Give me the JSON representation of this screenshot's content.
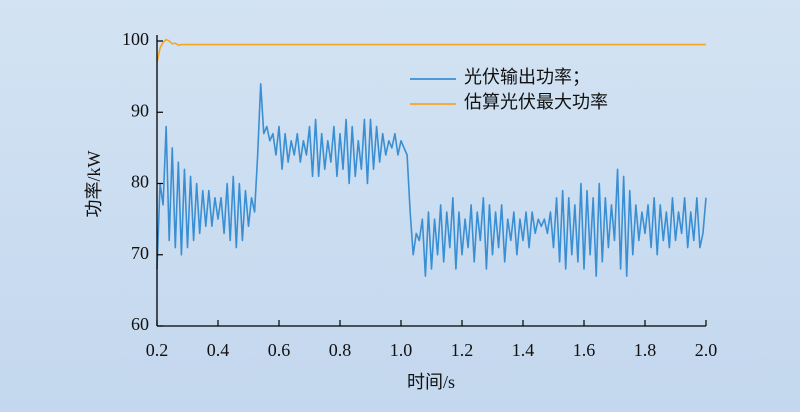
{
  "chart_data": {
    "type": "line",
    "xlabel": "时间/s",
    "ylabel": "功率/kW",
    "xlim": [
      0.2,
      2.0
    ],
    "ylim": [
      60,
      100
    ],
    "xticks": [
      0.2,
      0.4,
      0.6,
      0.8,
      {
        "value": 1,
        "label": "1.0"
      },
      1.2,
      1.4,
      1.6,
      1.8,
      {
        "value": 2,
        "label": "2.0"
      }
    ],
    "yticks": [
      60,
      70,
      80,
      90,
      100
    ],
    "legend": "upper center",
    "x": [
      0.2,
      0.21,
      0.22,
      0.23,
      0.24,
      0.25,
      0.26,
      0.27,
      0.28,
      0.29,
      0.3,
      0.31,
      0.32,
      0.33,
      0.34,
      0.35,
      0.36,
      0.37,
      0.38,
      0.39,
      0.4,
      0.41,
      0.42,
      0.43,
      0.44,
      0.45,
      0.46,
      0.47,
      0.48,
      0.49,
      0.5,
      0.51,
      0.52,
      0.53,
      0.54,
      0.55,
      0.56,
      0.57,
      0.58,
      0.59,
      0.6,
      0.61,
      0.62,
      0.63,
      0.64,
      0.65,
      0.66,
      0.67,
      0.68,
      0.69,
      0.7,
      0.71,
      0.72,
      0.73,
      0.74,
      0.75,
      0.76,
      0.77,
      0.78,
      0.79,
      0.8,
      0.81,
      0.82,
      0.83,
      0.84,
      0.85,
      0.86,
      0.87,
      0.88,
      0.89,
      0.9,
      0.91,
      0.92,
      0.93,
      0.94,
      0.95,
      0.96,
      0.97,
      0.98,
      0.99,
      1,
      1.01,
      1.02,
      1.03,
      1.04,
      1.05,
      1.06,
      1.07,
      1.08,
      1.09,
      1.1,
      1.11,
      1.12,
      1.13,
      1.14,
      1.15,
      1.16,
      1.17,
      1.18,
      1.19,
      1.2,
      1.21,
      1.22,
      1.23,
      1.24,
      1.25,
      1.26,
      1.27,
      1.28,
      1.29,
      1.3,
      1.31,
      1.32,
      1.33,
      1.34,
      1.35,
      1.36,
      1.37,
      1.38,
      1.39,
      1.4,
      1.41,
      1.42,
      1.43,
      1.44,
      1.45,
      1.46,
      1.47,
      1.48,
      1.49,
      1.5,
      1.51,
      1.52,
      1.53,
      1.54,
      1.55,
      1.56,
      1.57,
      1.58,
      1.59,
      1.6,
      1.61,
      1.62,
      1.63,
      1.64,
      1.65,
      1.66,
      1.67,
      1.68,
      1.69,
      1.7,
      1.71,
      1.72,
      1.73,
      1.74,
      1.75,
      1.76,
      1.77,
      1.78,
      1.79,
      1.8,
      1.81,
      1.82,
      1.83,
      1.84,
      1.85,
      1.86,
      1.87,
      1.88,
      1.89,
      1.9,
      1.91,
      1.92,
      1.93,
      1.94,
      1.95,
      1.96,
      1.97,
      1.98,
      1.99,
      2
    ],
    "series": [
      {
        "name": "光伏输出功率；",
        "color": "#3a8fd3",
        "values": [
          68,
          80,
          77,
          88,
          72,
          85,
          71,
          83,
          70,
          82,
          71,
          81,
          72,
          80,
          73,
          79,
          74,
          79,
          74,
          78,
          75,
          78,
          73,
          80,
          72,
          81,
          71,
          80,
          72,
          79,
          74,
          78,
          76,
          84,
          94,
          87,
          88,
          86,
          87,
          84,
          88,
          82,
          87,
          83,
          86,
          84,
          87,
          83,
          86,
          84,
          88,
          81,
          89,
          81,
          87,
          82,
          86,
          83,
          88,
          81,
          87,
          82,
          89,
          80,
          88,
          81,
          86,
          82,
          89,
          80,
          89,
          82,
          88,
          83,
          87,
          84,
          86,
          85,
          87,
          84,
          86,
          85,
          84,
          76,
          70,
          73,
          72,
          75,
          67,
          76,
          68,
          75,
          70,
          77,
          69,
          76,
          71,
          78,
          68,
          76,
          70,
          75,
          71,
          77,
          69,
          76,
          72,
          78,
          68,
          77,
          70,
          76,
          71,
          77,
          69,
          75,
          72,
          76,
          70,
          75,
          72,
          76,
          71,
          76,
          73,
          75,
          74,
          75,
          73,
          76,
          71,
          78,
          69,
          79,
          68,
          78,
          70,
          77,
          69,
          80,
          68,
          79,
          70,
          78,
          67,
          80,
          69,
          78,
          71,
          77,
          72,
          82,
          68,
          81,
          67,
          79,
          70,
          77,
          72,
          76,
          73,
          77,
          71,
          78,
          70,
          77,
          72,
          76,
          71,
          78,
          72,
          76,
          73,
          78,
          71,
          76,
          72,
          78,
          71,
          73,
          78
        ]
      },
      {
        "name": "估算光伏最大功率",
        "color": "#f5a623",
        "x": [
          0.2,
          0.21,
          0.22,
          0.23,
          0.24,
          0.25,
          0.26,
          0.27,
          0.28,
          0.3,
          2
        ],
        "values": [
          97,
          99,
          99.8,
          100.2,
          100,
          99.6,
          99.7,
          99.4,
          99.5,
          99.5,
          99.5
        ]
      }
    ]
  }
}
